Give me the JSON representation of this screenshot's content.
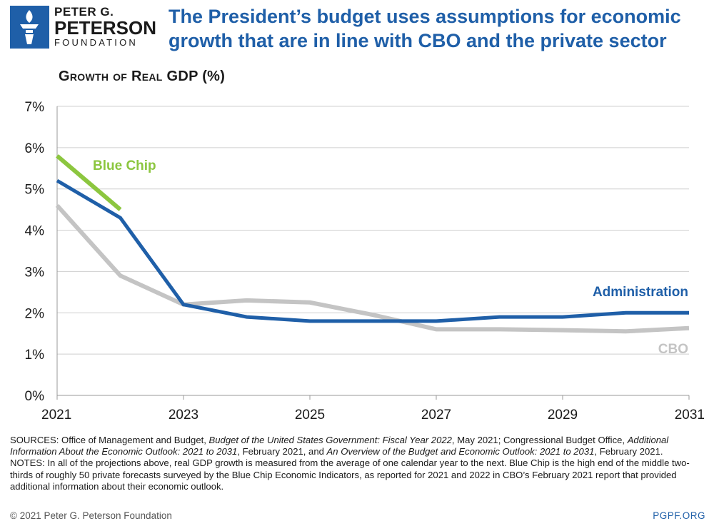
{
  "logo": {
    "line1": "PETER G.",
    "line2": "PETERSON",
    "line3": "FOUNDATION"
  },
  "headline": "The President’s budget uses assumptions for economic growth that are in line with CBO and the private sector",
  "colors": {
    "brand": "#1f5fa8",
    "administration": "#1f5fa8",
    "cbo": "#c4c4c4",
    "blue_chip": "#8cc63f"
  },
  "chart_data": {
    "type": "line",
    "title": "Growth of Real GDP (%)",
    "xlabel": "",
    "ylabel": "",
    "x_ticks": [
      "2021",
      "2023",
      "2025",
      "2027",
      "2029",
      "2031"
    ],
    "y_ticks": [
      "0%",
      "1%",
      "2%",
      "3%",
      "4%",
      "5%",
      "6%",
      "7%"
    ],
    "xlim": [
      2021,
      2031
    ],
    "ylim": [
      0,
      7
    ],
    "series": [
      {
        "name": "CBO",
        "label": "CBO",
        "x": [
          2021,
          2022,
          2023,
          2024,
          2025,
          2026,
          2027,
          2028,
          2029,
          2030,
          2031
        ],
        "values": [
          4.6,
          2.9,
          2.2,
          2.3,
          2.25,
          1.95,
          1.6,
          1.6,
          1.58,
          1.55,
          1.63
        ]
      },
      {
        "name": "Administration",
        "label": "Administration",
        "x": [
          2021,
          2022,
          2023,
          2024,
          2025,
          2026,
          2027,
          2028,
          2029,
          2030,
          2031
        ],
        "values": [
          5.2,
          4.3,
          2.2,
          1.9,
          1.8,
          1.8,
          1.8,
          1.9,
          1.9,
          2.0,
          2.0
        ]
      },
      {
        "name": "Blue Chip",
        "label": "Blue Chip",
        "x": [
          2021,
          2022
        ],
        "values": [
          5.8,
          4.5
        ]
      }
    ]
  },
  "notes": {
    "sources_prefix": "SOURCES: Office of Management and Budget, ",
    "sources_title1": "Budget of the United States Government: Fiscal Year 2022",
    "sources_mid1": ", May 2021; Congressional Budget Office, ",
    "sources_title2": "Additional Information About the Economic Outlook: 2021 to 2031",
    "sources_mid2": ", February 2021, and ",
    "sources_title3": "An Overview of the Budget and Economic Outlook: 2021 to 2031",
    "sources_end": ", February 2021.",
    "notes_text": "NOTES: In all of the projections above, real GDP growth is measured from the average of one calendar year to the next. Blue Chip is the high end of the middle two-thirds of roughly 50 private forecasts surveyed by the Blue Chip Economic Indicators, as reported for 2021 and 2022 in CBO’s February 2021 report that provided additional information about their economic outlook."
  },
  "footer": {
    "copyright": "© 2021 Peter G. Peterson Foundation",
    "site": "PGPF.ORG"
  }
}
